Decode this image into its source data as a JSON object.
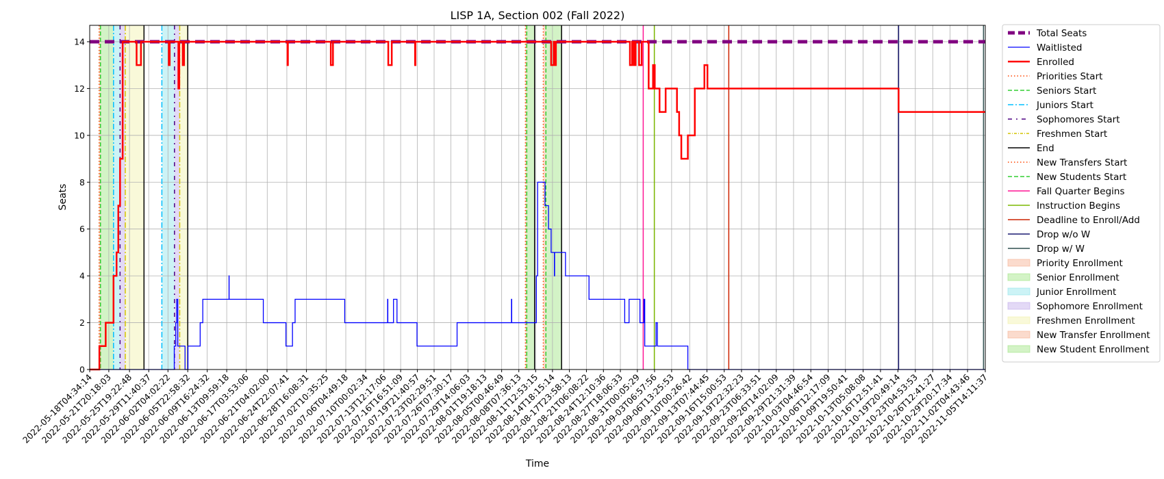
{
  "chart_data": {
    "type": "line",
    "title": "LISP 1A, Section 002 (Fall 2022)",
    "xlabel": "Time",
    "ylabel": "Seats",
    "xlim": [
      "2022-05-18T04:34:14",
      "2022-11-05T14:11:37"
    ],
    "ylim": [
      0,
      14.7
    ],
    "yticks": [
      0,
      2,
      4,
      6,
      8,
      10,
      12,
      14
    ],
    "xticks": [
      "2022-05-18T04:34:14",
      "2022-05-21T20:18:03",
      "2022-05-25T19:22:48",
      "2022-05-29T11:40:37",
      "2022-06-02T04:02:22",
      "2022-06-05T22:58:32",
      "2022-06-09T16:24:32",
      "2022-06-13T09:59:18",
      "2022-06-17T03:53:06",
      "2022-06-21T04:02:00",
      "2022-06-24T22:07:41",
      "2022-06-28T16:08:31",
      "2022-07-02T10:35:25",
      "2022-07-06T04:49:18",
      "2022-07-10T00:02:34",
      "2022-07-13T12:17:06",
      "2022-07-16T16:51:09",
      "2022-07-19T21:40:57",
      "2022-07-23T02:29:51",
      "2022-07-26T07:30:17",
      "2022-07-29T14:06:03",
      "2022-08-01T19:18:13",
      "2022-08-05T00:46:49",
      "2022-08-08T07:36:13",
      "2022-08-11T12:53:15",
      "2022-08-14T18:15:14",
      "2022-08-17T23:58:13",
      "2022-08-21T06:08:22",
      "2022-08-24T12:10:36",
      "2022-08-27T18:06:33",
      "2022-08-31T00:05:29",
      "2022-09-03T06:57:56",
      "2022-09-06T13:25:53",
      "2022-09-10T00:26:42",
      "2022-09-13T07:44:45",
      "2022-09-16T15:00:53",
      "2022-09-19T22:32:23",
      "2022-09-23T06:33:51",
      "2022-09-26T14:02:09",
      "2022-09-29T21:31:39",
      "2022-10-03T04:46:54",
      "2022-10-06T12:17:09",
      "2022-10-09T19:50:41",
      "2022-10-13T05:08:08",
      "2022-10-16T12:51:41",
      "2022-10-19T20:49:14",
      "2022-10-23T04:53:53",
      "2022-10-26T12:41:27",
      "2022-10-29T20:17:34",
      "2022-11-02T04:43:46",
      "2022-11-05T14:11:37"
    ],
    "grid": true,
    "legend_position": "outside-right",
    "series": [
      {
        "name": "Total Seats",
        "color": "#800080",
        "style": "dashed-thick",
        "points": [
          [
            "2022-05-18T04:34:14",
            14
          ],
          [
            "2022-11-05T14:11:37",
            14
          ]
        ]
      },
      {
        "name": "Waitlisted",
        "color": "#0000ff",
        "style": "solid-step",
        "points": [
          [
            "2022-05-18T04:34:14",
            0
          ],
          [
            "2022-06-03T08:00:00",
            0
          ],
          [
            "2022-06-03T09:00:00",
            1
          ],
          [
            "2022-06-03T16:00:00",
            2
          ],
          [
            "2022-06-03T20:00:00",
            3
          ],
          [
            "2022-06-04T01:00:00",
            1
          ],
          [
            "2022-06-05T10:00:00",
            1
          ],
          [
            "2022-06-05T10:30:00",
            0
          ],
          [
            "2022-06-05T22:58:32",
            0
          ],
          [
            "2022-06-06T00:00:00",
            1
          ],
          [
            "2022-06-08T06:00:00",
            1
          ],
          [
            "2022-06-08T08:00:00",
            2
          ],
          [
            "2022-06-08T20:00:00",
            3
          ],
          [
            "2022-06-13T20:00:00",
            3
          ],
          [
            "2022-06-13T20:30:00",
            4
          ],
          [
            "2022-06-13T21:00:00",
            3
          ],
          [
            "2022-06-20T08:00:00",
            3
          ],
          [
            "2022-06-20T10:00:00",
            2
          ],
          [
            "2022-06-24T16:00:00",
            2
          ],
          [
            "2022-06-24T18:00:00",
            1
          ],
          [
            "2022-06-25T22:00:00",
            1
          ],
          [
            "2022-06-26T00:00:00",
            2
          ],
          [
            "2022-06-26T12:00:00",
            3
          ],
          [
            "2022-07-05T22:00:00",
            3
          ],
          [
            "2022-07-06T00:00:00",
            2
          ],
          [
            "2022-07-14T04:00:00",
            2
          ],
          [
            "2022-07-14T05:00:00",
            3
          ],
          [
            "2022-07-14T06:00:00",
            2
          ],
          [
            "2022-07-15T06:00:00",
            2
          ],
          [
            "2022-07-15T08:00:00",
            3
          ],
          [
            "2022-07-16T00:00:00",
            2
          ],
          [
            "2022-07-19T18:00:00",
            2
          ],
          [
            "2022-07-19T20:00:00",
            1
          ],
          [
            "2022-07-27T10:00:00",
            1
          ],
          [
            "2022-07-27T12:00:00",
            2
          ],
          [
            "2022-08-06T21:00:00",
            2
          ],
          [
            "2022-08-06T22:00:00",
            3
          ],
          [
            "2022-08-06T23:00:00",
            2
          ],
          [
            "2022-08-11T12:00:00",
            2
          ],
          [
            "2022-08-11T16:00:00",
            4
          ],
          [
            "2022-08-11T22:00:00",
            8
          ],
          [
            "2022-08-13T06:00:00",
            8
          ],
          [
            "2022-08-13T08:00:00",
            7
          ],
          [
            "2022-08-14T00:00:00",
            6
          ],
          [
            "2022-08-14T12:00:00",
            5
          ],
          [
            "2022-08-15T02:00:00",
            5
          ],
          [
            "2022-08-15T03:00:00",
            4
          ],
          [
            "2022-08-15T04:00:00",
            5
          ],
          [
            "2022-08-17T04:00:00",
            5
          ],
          [
            "2022-08-17T06:00:00",
            4
          ],
          [
            "2022-08-21T16:00:00",
            4
          ],
          [
            "2022-08-21T18:00:00",
            3
          ],
          [
            "2022-08-28T12:00:00",
            3
          ],
          [
            "2022-08-28T14:00:00",
            2
          ],
          [
            "2022-08-29T08:00:00",
            2
          ],
          [
            "2022-08-29T10:00:00",
            3
          ],
          [
            "2022-08-31T00:05:29",
            3
          ],
          [
            "2022-08-31T12:00:00",
            2
          ],
          [
            "2022-09-01T04:00:00",
            2
          ],
          [
            "2022-09-01T06:00:00",
            3
          ],
          [
            "2022-09-01T10:00:00",
            1
          ],
          [
            "2022-09-03T12:00:00",
            1
          ],
          [
            "2022-09-03T14:00:00",
            2
          ],
          [
            "2022-09-03T20:00:00",
            1
          ],
          [
            "2022-09-09T14:00:00",
            1
          ],
          [
            "2022-09-09T16:00:00",
            0
          ],
          [
            "2022-11-05T14:11:37",
            0
          ]
        ]
      },
      {
        "name": "Enrolled",
        "color": "#ff0000",
        "style": "solid-thick-step",
        "points": [
          [
            "2022-05-18T04:34:14",
            0
          ],
          [
            "2022-05-20T00:00:00",
            0
          ],
          [
            "2022-05-20T01:00:00",
            1
          ],
          [
            "2022-05-21T00:00:00",
            1
          ],
          [
            "2022-05-21T06:00:00",
            2
          ],
          [
            "2022-05-22T12:00:00",
            2
          ],
          [
            "2022-05-22T18:00:00",
            4
          ],
          [
            "2022-05-23T08:00:00",
            5
          ],
          [
            "2022-05-23T16:00:00",
            7
          ],
          [
            "2022-05-24T00:00:00",
            9
          ],
          [
            "2022-05-24T12:00:00",
            14
          ],
          [
            "2022-05-27T00:00:00",
            14
          ],
          [
            "2022-05-27T04:00:00",
            13
          ],
          [
            "2022-05-28T00:00:00",
            14
          ],
          [
            "2022-06-02T04:02:22",
            14
          ],
          [
            "2022-06-02T08:00:00",
            13
          ],
          [
            "2022-06-02T12:00:00",
            14
          ],
          [
            "2022-06-04T00:00:00",
            14
          ],
          [
            "2022-06-04T04:00:00",
            12
          ],
          [
            "2022-06-04T08:00:00",
            14
          ],
          [
            "2022-06-05T00:00:00",
            13
          ],
          [
            "2022-06-05T06:00:00",
            14
          ],
          [
            "2022-06-25T00:00:00",
            14
          ],
          [
            "2022-06-25T01:00:00",
            13
          ],
          [
            "2022-06-25T03:00:00",
            14
          ],
          [
            "2022-07-03T06:00:00",
            14
          ],
          [
            "2022-07-03T08:00:00",
            13
          ],
          [
            "2022-07-03T18:00:00",
            14
          ],
          [
            "2022-07-14T06:00:00",
            14
          ],
          [
            "2022-07-14T08:00:00",
            13
          ],
          [
            "2022-07-15T00:00:00",
            14
          ],
          [
            "2022-07-19T10:00:00",
            14
          ],
          [
            "2022-07-19T11:00:00",
            13
          ],
          [
            "2022-07-19T13:00:00",
            14
          ],
          [
            "2022-08-14T10:00:00",
            14
          ],
          [
            "2022-08-14T12:00:00",
            13
          ],
          [
            "2022-08-15T00:00:00",
            14
          ],
          [
            "2022-08-15T02:00:00",
            13
          ],
          [
            "2022-08-15T10:00:00",
            14
          ],
          [
            "2022-08-29T12:00:00",
            14
          ],
          [
            "2022-08-29T14:00:00",
            13
          ],
          [
            "2022-08-30T00:00:00",
            14
          ],
          [
            "2022-08-30T08:00:00",
            13
          ],
          [
            "2022-08-30T16:00:00",
            14
          ],
          [
            "2022-08-31T00:05:29",
            14
          ],
          [
            "2022-08-31T08:00:00",
            13
          ],
          [
            "2022-08-31T20:00:00",
            14
          ],
          [
            "2022-09-02T00:00:00",
            14
          ],
          [
            "2022-09-02T04:00:00",
            12
          ],
          [
            "2022-09-03T00:00:00",
            13
          ],
          [
            "2022-09-03T08:00:00",
            12
          ],
          [
            "2022-09-04T00:00:00",
            12
          ],
          [
            "2022-09-04T06:00:00",
            11
          ],
          [
            "2022-09-05T06:00:00",
            11
          ],
          [
            "2022-09-05T10:00:00",
            12
          ],
          [
            "2022-09-07T10:00:00",
            12
          ],
          [
            "2022-09-07T14:00:00",
            11
          ],
          [
            "2022-09-08T00:00:00",
            10
          ],
          [
            "2022-09-08T10:00:00",
            9
          ],
          [
            "2022-09-09T16:00:00",
            10
          ],
          [
            "2022-09-11T00:00:00",
            12
          ],
          [
            "2022-09-12T18:00:00",
            12
          ],
          [
            "2022-09-12T20:00:00",
            13
          ],
          [
            "2022-09-13T10:00:00",
            12
          ],
          [
            "2022-10-19T20:00:00",
            12
          ],
          [
            "2022-10-20T00:00:00",
            11
          ],
          [
            "2022-11-05T14:11:37",
            11
          ]
        ]
      }
    ],
    "markers": [
      {
        "name": "Priorities Start",
        "color": "#ff4500",
        "style": "dotted",
        "x": [
          "2022-05-20T00:00:00",
          "2022-08-09T14:00:00"
        ]
      },
      {
        "name": "Seniors Start",
        "color": "#32cd32",
        "style": "dashed",
        "x": [
          "2022-05-20T06:00:00",
          "2022-08-09T20:00:00"
        ]
      },
      {
        "name": "Juniors Start",
        "color": "#00bfff",
        "style": "dashdot",
        "x": [
          "2022-05-22T18:00:00",
          "2022-06-01T00:00:00"
        ]
      },
      {
        "name": "Sophomores Start",
        "color": "#4b0082",
        "style": "dashdot-sparse",
        "x": [
          "2022-05-24T00:00:00",
          "2022-06-03T10:00:00"
        ]
      },
      {
        "name": "Freshmen Start",
        "color": "#d4c400",
        "style": "dashdot",
        "x": [
          "2022-05-25T00:00:00",
          "2022-06-04T10:00:00"
        ]
      },
      {
        "name": "End",
        "color": "#000000",
        "style": "solid",
        "x": [
          "2022-05-28T14:00:00",
          "2022-06-05T22:58:32",
          "2022-08-11T08:00:00",
          "2022-08-16T12:00:00"
        ]
      },
      {
        "name": "New Transfers Start",
        "color": "#ff4500",
        "style": "dotted",
        "x": [
          "2022-08-13T00:00:00"
        ]
      },
      {
        "name": "New Students Start",
        "color": "#32cd32",
        "style": "dashed",
        "x": [
          "2022-08-13T12:00:00"
        ]
      },
      {
        "name": "Fall Quarter Begins",
        "color": "#ff1493",
        "style": "solid",
        "x": [
          "2022-09-01T03:00:00"
        ]
      },
      {
        "name": "Instruction Begins",
        "color": "#7cb800",
        "style": "solid",
        "x": [
          "2022-09-03T06:00:00"
        ]
      },
      {
        "name": "Deadline to Enroll/Add",
        "color": "#cc2200",
        "style": "solid",
        "x": [
          "2022-09-17T12:00:00"
        ]
      },
      {
        "name": "Drop w/o W",
        "color": "#191970",
        "style": "solid",
        "x": [
          "2022-10-20T00:00:00"
        ]
      },
      {
        "name": "Drop w/ W",
        "color": "#2f4f4f",
        "style": "solid",
        "x": [
          "2022-11-05T06:00:00"
        ]
      }
    ],
    "regions": [
      {
        "name": "Priority Enrollment",
        "color": "#f4a582",
        "spans": [
          [
            "2022-05-20T00:00:00",
            "2022-05-20T06:00:00"
          ],
          [
            "2022-08-09T14:00:00",
            "2022-08-09T20:00:00"
          ]
        ]
      },
      {
        "name": "Senior Enrollment",
        "color": "#90e070",
        "spans": [
          [
            "2022-05-20T06:00:00",
            "2022-05-22T18:00:00"
          ],
          [
            "2022-08-09T20:00:00",
            "2022-08-11T08:00:00"
          ]
        ]
      },
      {
        "name": "Junior Enrollment",
        "color": "#80e0e8",
        "spans": [
          [
            "2022-05-22T18:00:00",
            "2022-05-24T00:00:00"
          ],
          [
            "2022-06-01T00:00:00",
            "2022-06-03T10:00:00"
          ]
        ]
      },
      {
        "name": "Sophomore Enrollment",
        "color": "#b8a0e8",
        "spans": [
          [
            "2022-05-24T00:00:00",
            "2022-05-25T00:00:00"
          ],
          [
            "2022-06-03T10:00:00",
            "2022-06-04T10:00:00"
          ]
        ]
      },
      {
        "name": "Freshmen Enrollment",
        "color": "#f0f0a0",
        "spans": [
          [
            "2022-05-25T00:00:00",
            "2022-05-28T14:00:00"
          ],
          [
            "2022-06-04T10:00:00",
            "2022-06-05T22:58:32"
          ]
        ]
      },
      {
        "name": "New Transfer Enrollment",
        "color": "#f4a582",
        "spans": [
          [
            "2022-08-13T00:00:00",
            "2022-08-13T12:00:00"
          ]
        ]
      },
      {
        "name": "New Student Enrollment",
        "color": "#90e070",
        "spans": [
          [
            "2022-08-13T12:00:00",
            "2022-08-16T12:00:00"
          ]
        ]
      }
    ],
    "legend": [
      {
        "label": "Total Seats",
        "type": "line",
        "color": "#800080",
        "dash": "10,5",
        "width": 5
      },
      {
        "label": "Waitlisted",
        "type": "line",
        "color": "#0000ff",
        "dash": "",
        "width": 1.3
      },
      {
        "label": "Enrolled",
        "type": "line",
        "color": "#ff0000",
        "dash": "",
        "width": 2.5
      },
      {
        "label": "Priorities Start",
        "type": "line",
        "color": "#ff4500",
        "dash": "1.5,3",
        "width": 1.5
      },
      {
        "label": "Seniors Start",
        "type": "line",
        "color": "#32cd32",
        "dash": "6,3",
        "width": 1.5
      },
      {
        "label": "Juniors Start",
        "type": "line",
        "color": "#00bfff",
        "dash": "8,3,2,3",
        "width": 1.5
      },
      {
        "label": "Sophomores Start",
        "type": "line",
        "color": "#4b0082",
        "dash": "6,6,2,6",
        "width": 1.5
      },
      {
        "label": "Freshmen Start",
        "type": "line",
        "color": "#d4c400",
        "dash": "4,2,1,2",
        "width": 1.5
      },
      {
        "label": "End",
        "type": "line",
        "color": "#000000",
        "dash": "",
        "width": 1.5
      },
      {
        "label": "New Transfers Start",
        "type": "line",
        "color": "#ff4500",
        "dash": "1.5,3",
        "width": 1.5
      },
      {
        "label": "New Students Start",
        "type": "line",
        "color": "#32cd32",
        "dash": "6,3",
        "width": 1.5
      },
      {
        "label": "Fall Quarter Begins",
        "type": "line",
        "color": "#ff1493",
        "dash": "",
        "width": 1.5
      },
      {
        "label": "Instruction Begins",
        "type": "line",
        "color": "#7cb800",
        "dash": "",
        "width": 1.5
      },
      {
        "label": "Deadline to Enroll/Add",
        "type": "line",
        "color": "#cc2200",
        "dash": "",
        "width": 1.5
      },
      {
        "label": "Drop w/o W",
        "type": "line",
        "color": "#191970",
        "dash": "",
        "width": 1.5
      },
      {
        "label": "Drop w/ W",
        "type": "line",
        "color": "#2f4f4f",
        "dash": "",
        "width": 1.5
      },
      {
        "label": "Priority Enrollment",
        "type": "patch",
        "color": "#f4a582"
      },
      {
        "label": "Senior Enrollment",
        "type": "patch",
        "color": "#90e070"
      },
      {
        "label": "Junior Enrollment",
        "type": "patch",
        "color": "#80e0e8"
      },
      {
        "label": "Sophomore Enrollment",
        "type": "patch",
        "color": "#b8a0e8"
      },
      {
        "label": "Freshmen Enrollment",
        "type": "patch",
        "color": "#f0f0a0"
      },
      {
        "label": "New Transfer Enrollment",
        "type": "patch",
        "color": "#f4a582"
      },
      {
        "label": "New Student Enrollment",
        "type": "patch",
        "color": "#90e070"
      }
    ]
  }
}
